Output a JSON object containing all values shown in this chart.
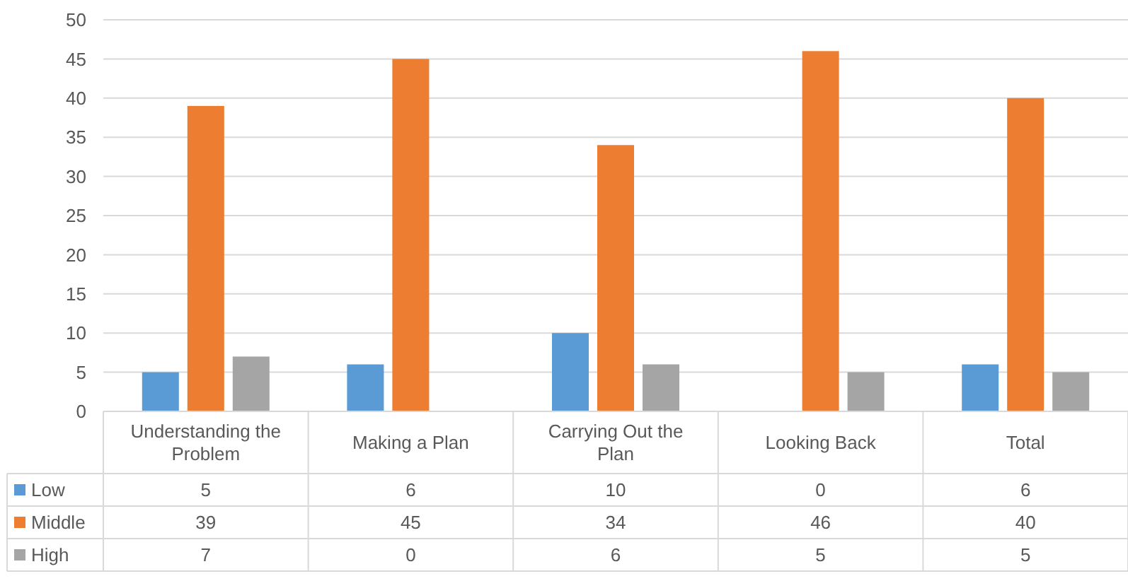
{
  "chart_data": {
    "type": "bar",
    "categories": [
      "Understanding the Problem",
      "Making a Plan",
      "Carrying Out the Plan",
      "Looking Back",
      "Total"
    ],
    "series": [
      {
        "name": "Low",
        "color": "#5b9bd5",
        "values": [
          5,
          6,
          10,
          0,
          6
        ]
      },
      {
        "name": "Middle",
        "color": "#ed7d31",
        "values": [
          39,
          45,
          34,
          46,
          40
        ]
      },
      {
        "name": "High",
        "color": "#a5a5a5",
        "values": [
          7,
          0,
          6,
          5,
          5
        ]
      }
    ],
    "ylim": [
      0,
      50
    ],
    "yticks": [
      0,
      5,
      10,
      15,
      20,
      25,
      30,
      35,
      40,
      45,
      50
    ],
    "grid": "y",
    "legend": "bottom",
    "data_labels": true
  }
}
